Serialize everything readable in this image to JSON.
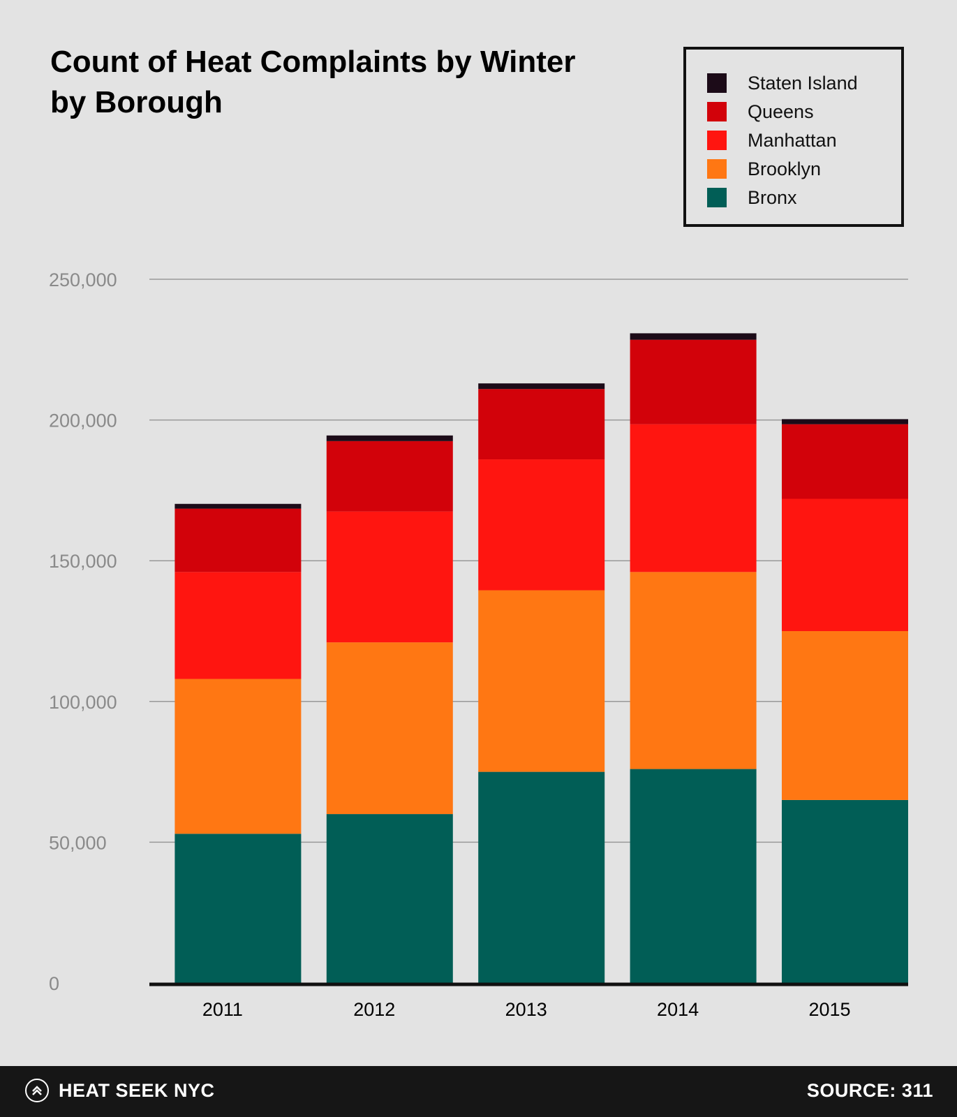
{
  "colors": {
    "background": "#e3e3e3",
    "footer": "#161616",
    "Bronx": "#015e56",
    "Brooklyn": "#ff7713",
    "Manhattan": "#ff1510",
    "Queens": "#d2020a",
    "Staten Island": "#1c0b18",
    "grid": "#999999"
  },
  "legend": {
    "items": [
      {
        "label": "Staten Island",
        "color": "#1c0b18"
      },
      {
        "label": "Queens",
        "color": "#d2020a"
      },
      {
        "label": "Manhattan",
        "color": "#ff1510"
      },
      {
        "label": "Brooklyn",
        "color": "#ff7713"
      },
      {
        "label": "Bronx",
        "color": "#015e56"
      }
    ]
  },
  "footer": {
    "brand": "HEAT SEEK NYC",
    "brand_icon": "chevron-up-icon",
    "source": "SOURCE: 311"
  },
  "chart_data": {
    "type": "bar",
    "stacked": true,
    "title": "Count of Heat Complaints by Winter by Borough",
    "xlabel": "",
    "ylabel": "",
    "categories": [
      "2011",
      "2012",
      "2013",
      "2014",
      "2015"
    ],
    "series": [
      {
        "name": "Bronx",
        "values": [
          53000,
          60000,
          75000,
          76000,
          65000
        ]
      },
      {
        "name": "Brooklyn",
        "values": [
          55000,
          61000,
          64500,
          70000,
          60000
        ]
      },
      {
        "name": "Manhattan",
        "values": [
          38000,
          46500,
          46500,
          52500,
          47000
        ]
      },
      {
        "name": "Queens",
        "values": [
          22500,
          25000,
          25000,
          30000,
          26500
        ]
      },
      {
        "name": "Staten Island",
        "values": [
          1700,
          2000,
          2000,
          2300,
          1800
        ]
      }
    ],
    "ylim": [
      0,
      250000
    ],
    "yticks": [
      0,
      50000,
      100000,
      150000,
      200000,
      250000
    ],
    "ytick_labels": [
      "0",
      "50,000",
      "100,000",
      "150,000",
      "200,000",
      "250,000"
    ],
    "grid": true,
    "legend_position": "top-right"
  }
}
